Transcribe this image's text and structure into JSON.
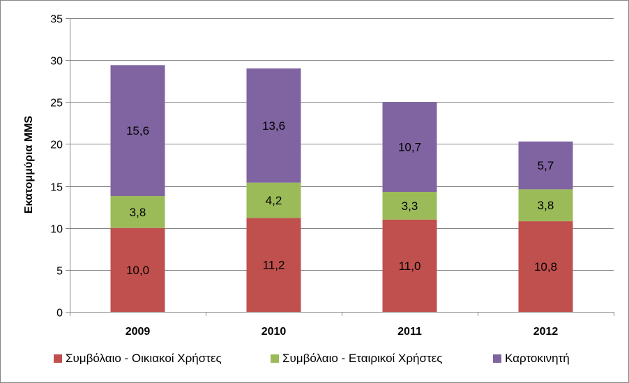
{
  "chart_data": {
    "type": "bar",
    "stacked": true,
    "categories": [
      "2009",
      "2010",
      "2011",
      "2012"
    ],
    "series": [
      {
        "name": "Συμβόλαιο - Οικιακοί Χρήστες",
        "color": "#C0504D",
        "values": [
          10.0,
          11.2,
          11.0,
          10.8
        ],
        "labels": [
          "10,0",
          "11,2",
          "11,0",
          "10,8"
        ]
      },
      {
        "name": "Συμβόλαιο - Εταιρικοί Χρήστες",
        "color": "#9BBB59",
        "values": [
          3.8,
          4.2,
          3.3,
          3.8
        ],
        "labels": [
          "3,8",
          "4,2",
          "3,3",
          "3,8"
        ]
      },
      {
        "name": "Καρτοκινητή",
        "color": "#8064A2",
        "values": [
          15.6,
          13.6,
          10.7,
          5.7
        ],
        "labels": [
          "15,6",
          "13,6",
          "10,7",
          "5,7"
        ]
      }
    ],
    "title": "",
    "xlabel": "",
    "ylabel": "Εκατομμύρια MMS",
    "ylim": [
      0,
      35
    ],
    "yticks": [
      0,
      5,
      10,
      15,
      20,
      25,
      30,
      35
    ],
    "grid": true,
    "legend": "bottom",
    "gridline_color": "#868686"
  }
}
